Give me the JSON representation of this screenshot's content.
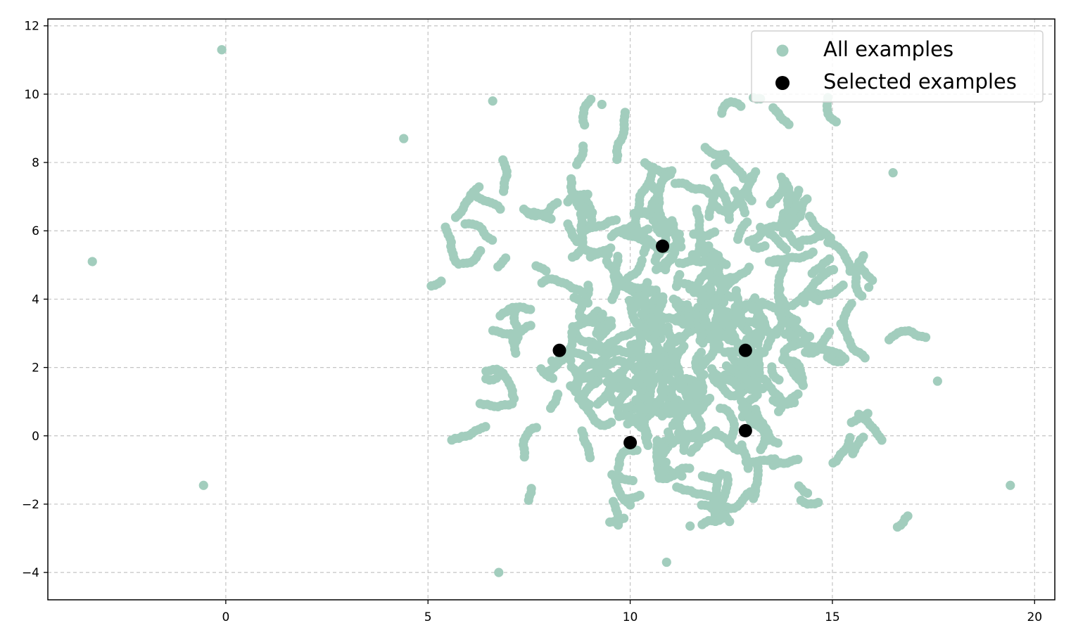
{
  "chart_data": {
    "type": "scatter",
    "title": "",
    "xlabel": "",
    "ylabel": "",
    "xlim": [
      -4.4,
      20.5
    ],
    "ylim": [
      -4.8,
      12.2
    ],
    "xticks": [
      0,
      5,
      10,
      15,
      20
    ],
    "yticks": [
      -4,
      -2,
      0,
      2,
      4,
      6,
      8,
      10,
      12
    ],
    "grid": true,
    "legend_position": "top-right",
    "cluster_center": [
      11.1,
      3.0
    ],
    "series": [
      {
        "name": "All examples",
        "color": "#a2cdbd",
        "marker": "circle",
        "approx_point_count": 2500,
        "outlier_points": [
          [
            -0.1,
            11.3
          ],
          [
            -3.3,
            5.1
          ],
          [
            -0.55,
            -1.45
          ],
          [
            19.4,
            -1.45
          ],
          [
            4.4,
            8.7
          ],
          [
            6.75,
            -4.0
          ],
          [
            16.5,
            7.7
          ],
          [
            17.6,
            1.6
          ],
          [
            10.9,
            -3.7
          ],
          [
            6.6,
            9.8
          ],
          [
            9.3,
            9.7
          ],
          [
            15.9,
            4.35
          ]
        ]
      },
      {
        "name": "Selected examples",
        "color": "#000000",
        "marker": "circle",
        "points": [
          [
            10.8,
            5.55
          ],
          [
            8.25,
            2.5
          ],
          [
            12.85,
            2.5
          ],
          [
            12.85,
            0.15
          ],
          [
            10.0,
            -0.2
          ]
        ]
      }
    ]
  }
}
